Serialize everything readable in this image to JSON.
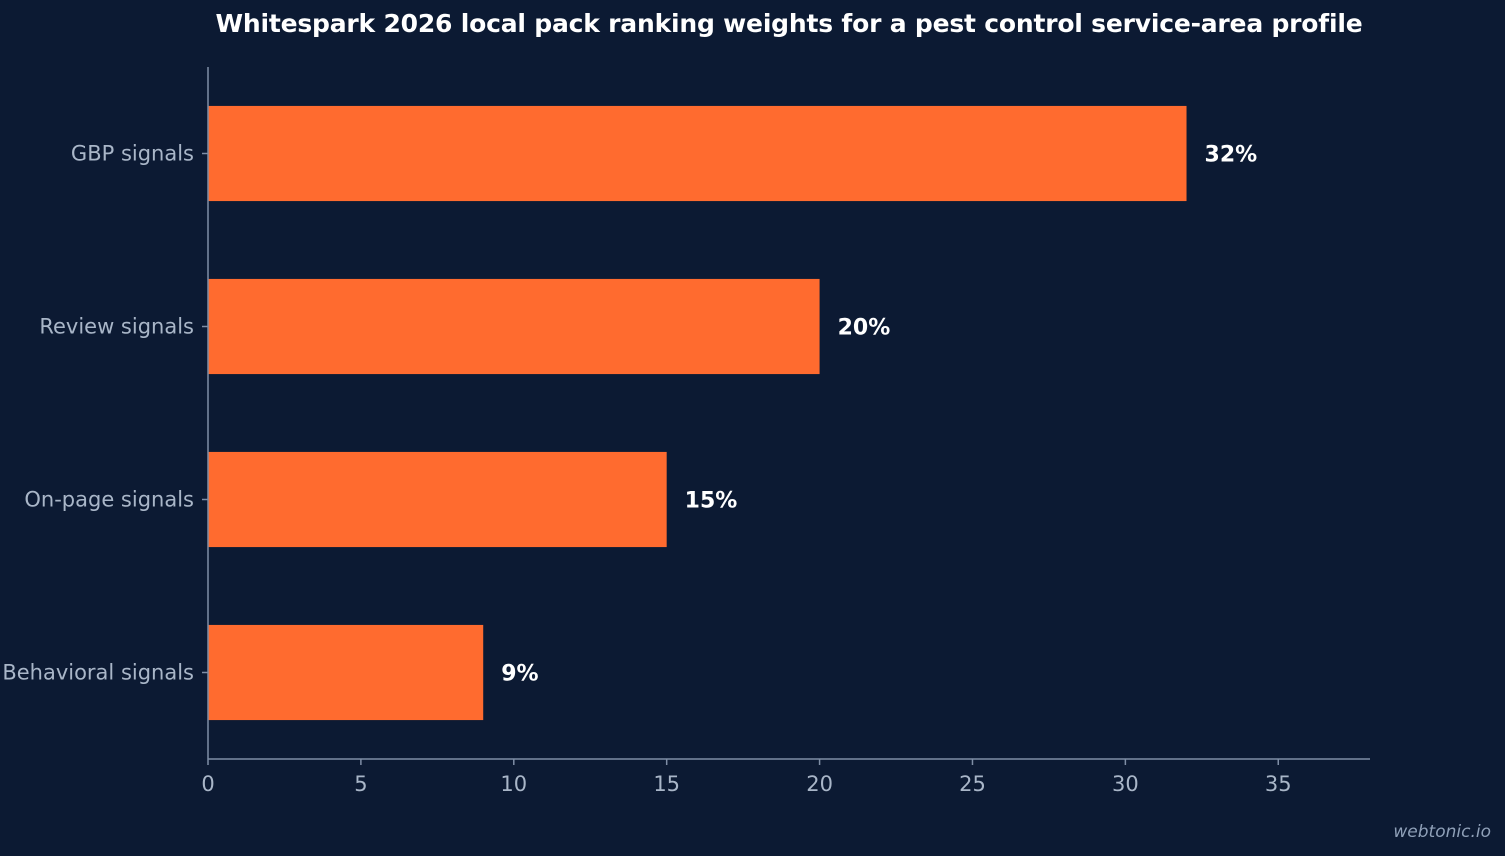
{
  "chart_data": {
    "type": "bar",
    "orientation": "horizontal",
    "title": "Whitespark 2026 local pack ranking weights for a pest control service-area profile",
    "categories": [
      "GBP signals",
      "Review signals",
      "On-page signals",
      "Behavioral signals"
    ],
    "values": [
      32,
      20,
      15,
      9
    ],
    "value_labels": [
      "32%",
      "20%",
      "15%",
      "9%"
    ],
    "xlabel": "",
    "ylabel": "",
    "xlim": [
      0,
      38
    ],
    "xticks": [
      0,
      5,
      10,
      15,
      20,
      25,
      30,
      35
    ],
    "grid": false,
    "legend": "none",
    "colors": {
      "bar": "#ff6b2f",
      "background": "#0c1a33",
      "axis": "#7f8ea6",
      "tick_text": "#a9b6c8",
      "value_text": "#ffffff"
    }
  },
  "watermark": "webtonic.io"
}
